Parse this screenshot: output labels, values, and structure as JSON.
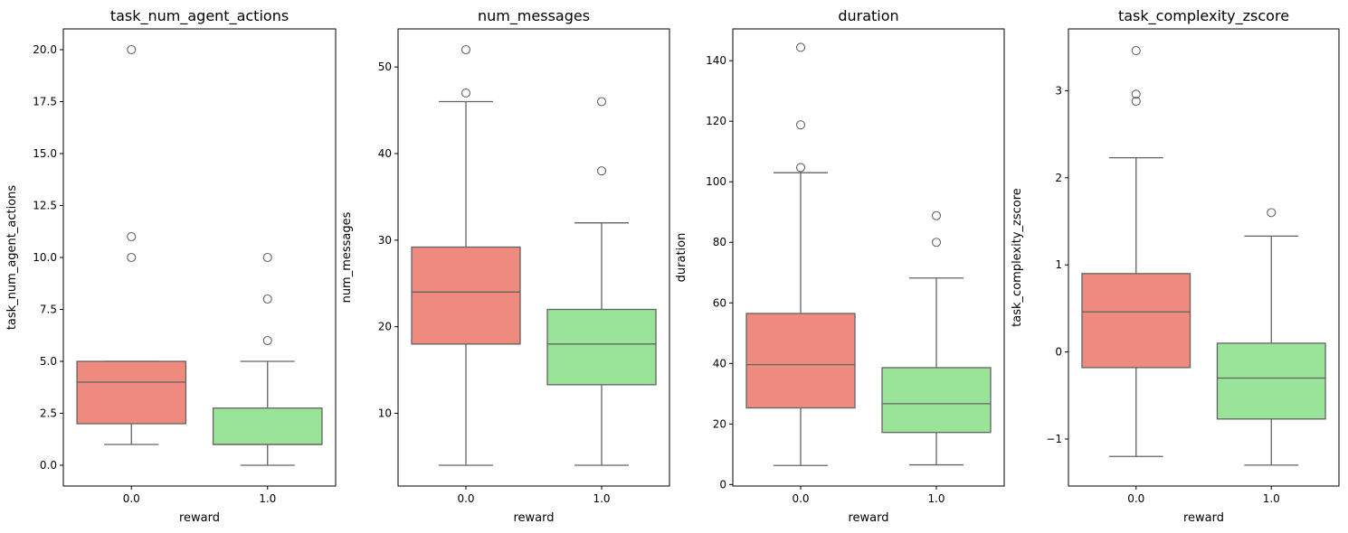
{
  "chart_data": [
    {
      "type": "box",
      "title": "task_num_agent_actions",
      "xlabel": "reward",
      "ylabel": "task_num_agent_actions",
      "categories": [
        "0.0",
        "1.0"
      ],
      "ylim": [
        -1.0,
        21.0
      ],
      "yticks": [
        "0.0",
        "2.5",
        "5.0",
        "7.5",
        "10.0",
        "12.5",
        "15.0",
        "17.5",
        "20.0"
      ],
      "boxes": [
        {
          "category": "0.0",
          "color": "#ee8b7e",
          "whisker_low": 1,
          "q1": 2,
          "median": 4,
          "q3": 5,
          "whisker_high": 5,
          "outliers": [
            10,
            11,
            20
          ]
        },
        {
          "category": "1.0",
          "color": "#9ae49a",
          "whisker_low": 0,
          "q1": 1,
          "median": 1,
          "q3": 2.75,
          "whisker_high": 5,
          "outliers": [
            6,
            8,
            10
          ]
        }
      ]
    },
    {
      "type": "box",
      "title": "num_messages",
      "xlabel": "reward",
      "ylabel": "num_messages",
      "categories": [
        "0.0",
        "1.0"
      ],
      "ylim": [
        1.6,
        54.4
      ],
      "yticks": [
        "10",
        "20",
        "30",
        "40",
        "50"
      ],
      "boxes": [
        {
          "category": "0.0",
          "color": "#ee8b7e",
          "whisker_low": 4,
          "q1": 18,
          "median": 24,
          "q3": 29.2,
          "whisker_high": 46,
          "outliers": [
            47,
            52
          ]
        },
        {
          "category": "1.0",
          "color": "#9ae49a",
          "whisker_low": 4,
          "q1": 13.3,
          "median": 18,
          "q3": 22,
          "whisker_high": 32,
          "outliers": [
            38,
            46
          ]
        }
      ]
    },
    {
      "type": "box",
      "title": "duration",
      "xlabel": "reward",
      "ylabel": "duration",
      "categories": [
        "0.0",
        "1.0"
      ],
      "ylim": [
        -0.5,
        150.5
      ],
      "yticks": [
        "0",
        "20",
        "40",
        "60",
        "80",
        "100",
        "120",
        "140"
      ],
      "boxes": [
        {
          "category": "0.0",
          "color": "#ee8b7e",
          "whisker_low": 6.3,
          "q1": 25.3,
          "median": 39.6,
          "q3": 56.5,
          "whisker_high": 103,
          "outliers": [
            104.7,
            118.8,
            144.4
          ]
        },
        {
          "category": "1.0",
          "color": "#9ae49a",
          "whisker_low": 6.5,
          "q1": 17.2,
          "median": 26.7,
          "q3": 38.6,
          "whisker_high": 68.2,
          "outliers": [
            80,
            88.8
          ]
        }
      ]
    },
    {
      "type": "box",
      "title": "task_complexity_zscore",
      "xlabel": "reward",
      "ylabel": "task_complexity_zscore",
      "categories": [
        "0.0",
        "1.0"
      ],
      "ylim": [
        -1.54,
        3.71
      ],
      "yticks": [
        "−1",
        "0",
        "1",
        "2",
        "3"
      ],
      "boxes": [
        {
          "category": "0.0",
          "color": "#ee8b7e",
          "whisker_low": -1.2,
          "q1": -0.18,
          "median": 0.46,
          "q3": 0.9,
          "whisker_high": 2.23,
          "outliers": [
            2.88,
            2.96,
            3.46
          ]
        },
        {
          "category": "1.0",
          "color": "#9ae49a",
          "whisker_low": -1.3,
          "q1": -0.77,
          "median": -0.3,
          "q3": 0.1,
          "whisker_high": 1.33,
          "outliers": [
            1.6
          ]
        }
      ]
    }
  ]
}
